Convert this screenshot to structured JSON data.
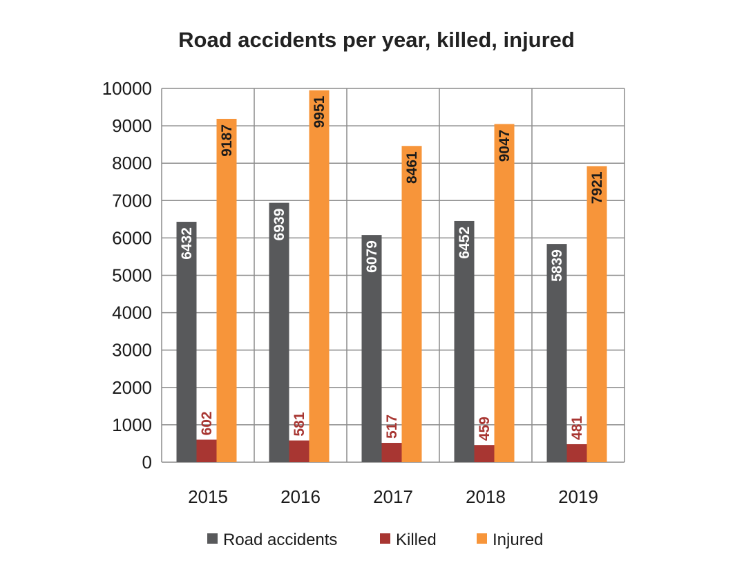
{
  "chart_data": {
    "type": "bar",
    "title": "Road accidents per year, killed, injured",
    "xlabel": "",
    "ylabel": "",
    "categories": [
      "2015",
      "2016",
      "2017",
      "2018",
      "2019"
    ],
    "ylim": [
      0,
      10000
    ],
    "yticks": [
      "0",
      "1000",
      "2000",
      "3000",
      "4000",
      "5000",
      "6000",
      "7000",
      "8000",
      "9000",
      "10000"
    ],
    "grid": true,
    "legend_position": "bottom",
    "series": [
      {
        "name": "Road accidents",
        "values": [
          6432,
          6939,
          6079,
          6452,
          5839
        ],
        "color": "#58595b",
        "label_color": "#ffffff"
      },
      {
        "name": "Killed",
        "values": [
          602,
          581,
          517,
          459,
          481
        ],
        "color": "#a83632",
        "label_color": "#a83632"
      },
      {
        "name": "Injured",
        "values": [
          9187,
          9951,
          8461,
          9047,
          7921
        ],
        "color": "#f7953a",
        "label_color": "#1a1a1a"
      }
    ]
  }
}
